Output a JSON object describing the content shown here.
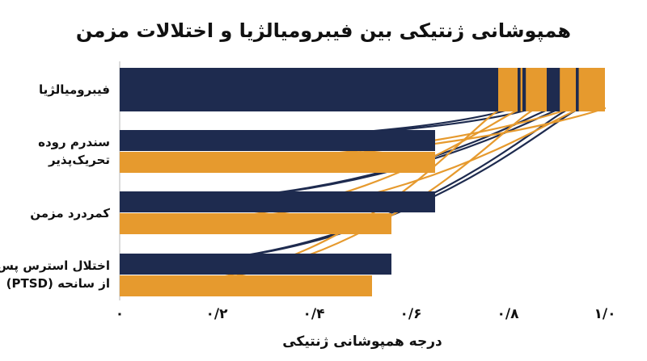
{
  "colors": {
    "navy": "#1e2b4f",
    "orange": "#e69a2e",
    "axis": "#cfcfcf",
    "text": "#111111"
  },
  "chart_data": {
    "type": "bar",
    "title": "همپوشانی ژنتیکی بین فیبرومیالژیا و اختلالات مزمن",
    "xlabel": "درجه همپوشانی ژنتیکی",
    "ylabel": "",
    "xlim": [
      0,
      1.0
    ],
    "ticks": [
      {
        "value": 0,
        "label": "۰"
      },
      {
        "value": 0.2,
        "label": "۰/۲"
      },
      {
        "value": 0.4,
        "label": "۰/۴"
      },
      {
        "value": 0.6,
        "label": "۰/۶"
      },
      {
        "value": 0.8,
        "label": "۰/۸"
      },
      {
        "value": 1.0,
        "label": "۱/۰"
      }
    ],
    "categories": [
      {
        "label": [
          "فیبرومیالژیا"
        ],
        "bars": [
          {
            "series": "navy",
            "value": 1.0
          }
        ]
      },
      {
        "label": [
          "سندرم روده",
          "تحریک‌پذیر"
        ],
        "bars": [
          {
            "series": "navy",
            "value": 0.65
          },
          {
            "series": "orange",
            "value": 0.65
          }
        ]
      },
      {
        "label": [
          "کمردرد مزمن"
        ],
        "bars": [
          {
            "series": "navy",
            "value": 0.65
          },
          {
            "series": "orange",
            "value": 0.56
          }
        ]
      },
      {
        "label": [
          "اختلال استرس پس",
          "از سانحه (PTSD)"
        ],
        "bars": [
          {
            "series": "navy",
            "value": 0.56
          },
          {
            "series": "orange",
            "value": 0.52
          }
        ]
      }
    ],
    "stripes_on_top_bar": [
      {
        "series": "orange",
        "from": 0.78,
        "to": 0.82
      },
      {
        "series": "orange",
        "from": 0.826,
        "to": 0.83
      },
      {
        "series": "orange",
        "from": 0.837,
        "to": 0.88
      },
      {
        "series": "orange",
        "from": 0.907,
        "to": 0.94
      },
      {
        "series": "orange",
        "from": 0.946,
        "to": 1.0
      }
    ],
    "flows": [
      {
        "series": "navy",
        "from_bar": 1,
        "to_x": 0.81
      },
      {
        "series": "navy",
        "from_bar": 1,
        "to_x": 0.85
      },
      {
        "series": "navy",
        "from_bar": 3,
        "to_x": 0.89
      },
      {
        "series": "navy",
        "from_bar": 3,
        "to_x": 0.91
      },
      {
        "series": "navy",
        "from_bar": 5,
        "to_x": 0.93
      },
      {
        "series": "navy",
        "from_bar": 5,
        "to_x": 0.95
      },
      {
        "series": "orange",
        "from_bar": 2,
        "to_x": 0.93
      },
      {
        "series": "orange",
        "from_bar": 2,
        "to_x": 1.0
      },
      {
        "series": "orange",
        "from_bar": 4,
        "to_x": 0.95
      },
      {
        "series": "orange",
        "from_bar": 4,
        "to_x": 0.83
      },
      {
        "series": "orange",
        "from_bar": 6,
        "to_x": 0.86
      },
      {
        "series": "orange",
        "from_bar": 6,
        "to_x": 0.79
      }
    ]
  }
}
